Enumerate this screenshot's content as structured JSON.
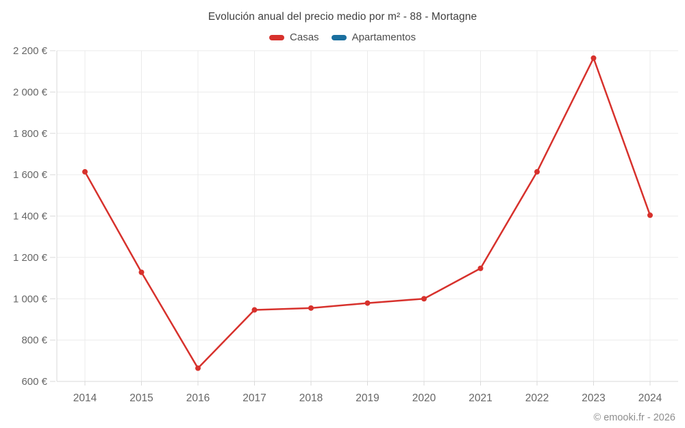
{
  "title": "Evolución anual del precio medio por m² - 88 - Mortagne",
  "legend": {
    "items": [
      {
        "label": "Casas",
        "color": "#d7312c"
      },
      {
        "label": "Apartamentos",
        "color": "#1a6f9f"
      }
    ]
  },
  "footer": "© emooki.fr - 2026",
  "colors": {
    "casas_line": "#d7312c",
    "apartamentos_line": "#1a6f9f",
    "gridline": "#ebebeb",
    "axis_line": "#d9d9d9",
    "tick_label": "#666666",
    "title_text": "#3f3f3f",
    "footer_text": "#8e8e8e"
  },
  "chart_data": {
    "type": "line",
    "title": "Evolución anual del precio medio por m² - 88 - Mortagne",
    "categories": [
      "2014",
      "2015",
      "2016",
      "2017",
      "2018",
      "2019",
      "2020",
      "2021",
      "2022",
      "2023",
      "2024"
    ],
    "series": [
      {
        "name": "Casas",
        "color": "#d7312c",
        "values": [
          1614,
          1128,
          664,
          946,
          955,
          979,
          1000,
          1147,
          1614,
          2164,
          1404
        ]
      },
      {
        "name": "Apartamentos",
        "color": "#1a6f9f",
        "values": []
      }
    ],
    "xlabel": "",
    "ylabel": "",
    "ylim": [
      600,
      2200
    ],
    "ytick_step": 200,
    "ytick_labels": [
      "600 €",
      "800 €",
      "1 000 €",
      "1 200 €",
      "1 400 €",
      "1 600 €",
      "1 800 €",
      "2 000 €",
      "2 200 €"
    ],
    "ylabel_suffix": " €",
    "grid": true,
    "legend_position": "top",
    "point_radius": 4,
    "line_width": 2.5
  }
}
